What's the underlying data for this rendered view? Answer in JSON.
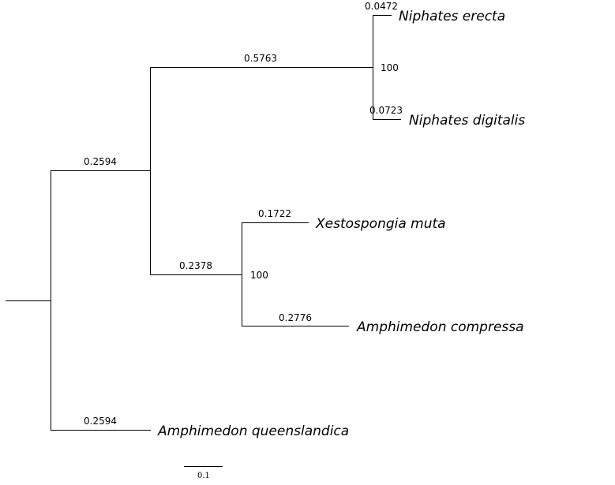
{
  "tree": {
    "taxa": {
      "niphates_erecta": "Niphates erecta",
      "niphates_digitalis": "Niphates digitalis",
      "xestospongia_muta": "Xestospongia muta",
      "amphimedon_compressa": "Amphimedon compressa",
      "amphimedon_queenslandica": "Amphimedon queenslandica"
    },
    "branch_lengths": {
      "niphates_erecta": "0.0472",
      "niphates_clade": "0.5763",
      "niphates_digitalis": "0.0723",
      "ingroup_clade": "0.2594",
      "xestospongia_muta": "0.1722",
      "xesto_amphi_clade": "0.2378",
      "amphimedon_compressa": "0.2776",
      "amphimedon_queenslandica": "0.2594"
    },
    "bootstrap": {
      "niphates_clade": "100",
      "xesto_amphi_clade": "100"
    },
    "scale_bar": {
      "label": "0.1",
      "value": 0.1
    }
  }
}
